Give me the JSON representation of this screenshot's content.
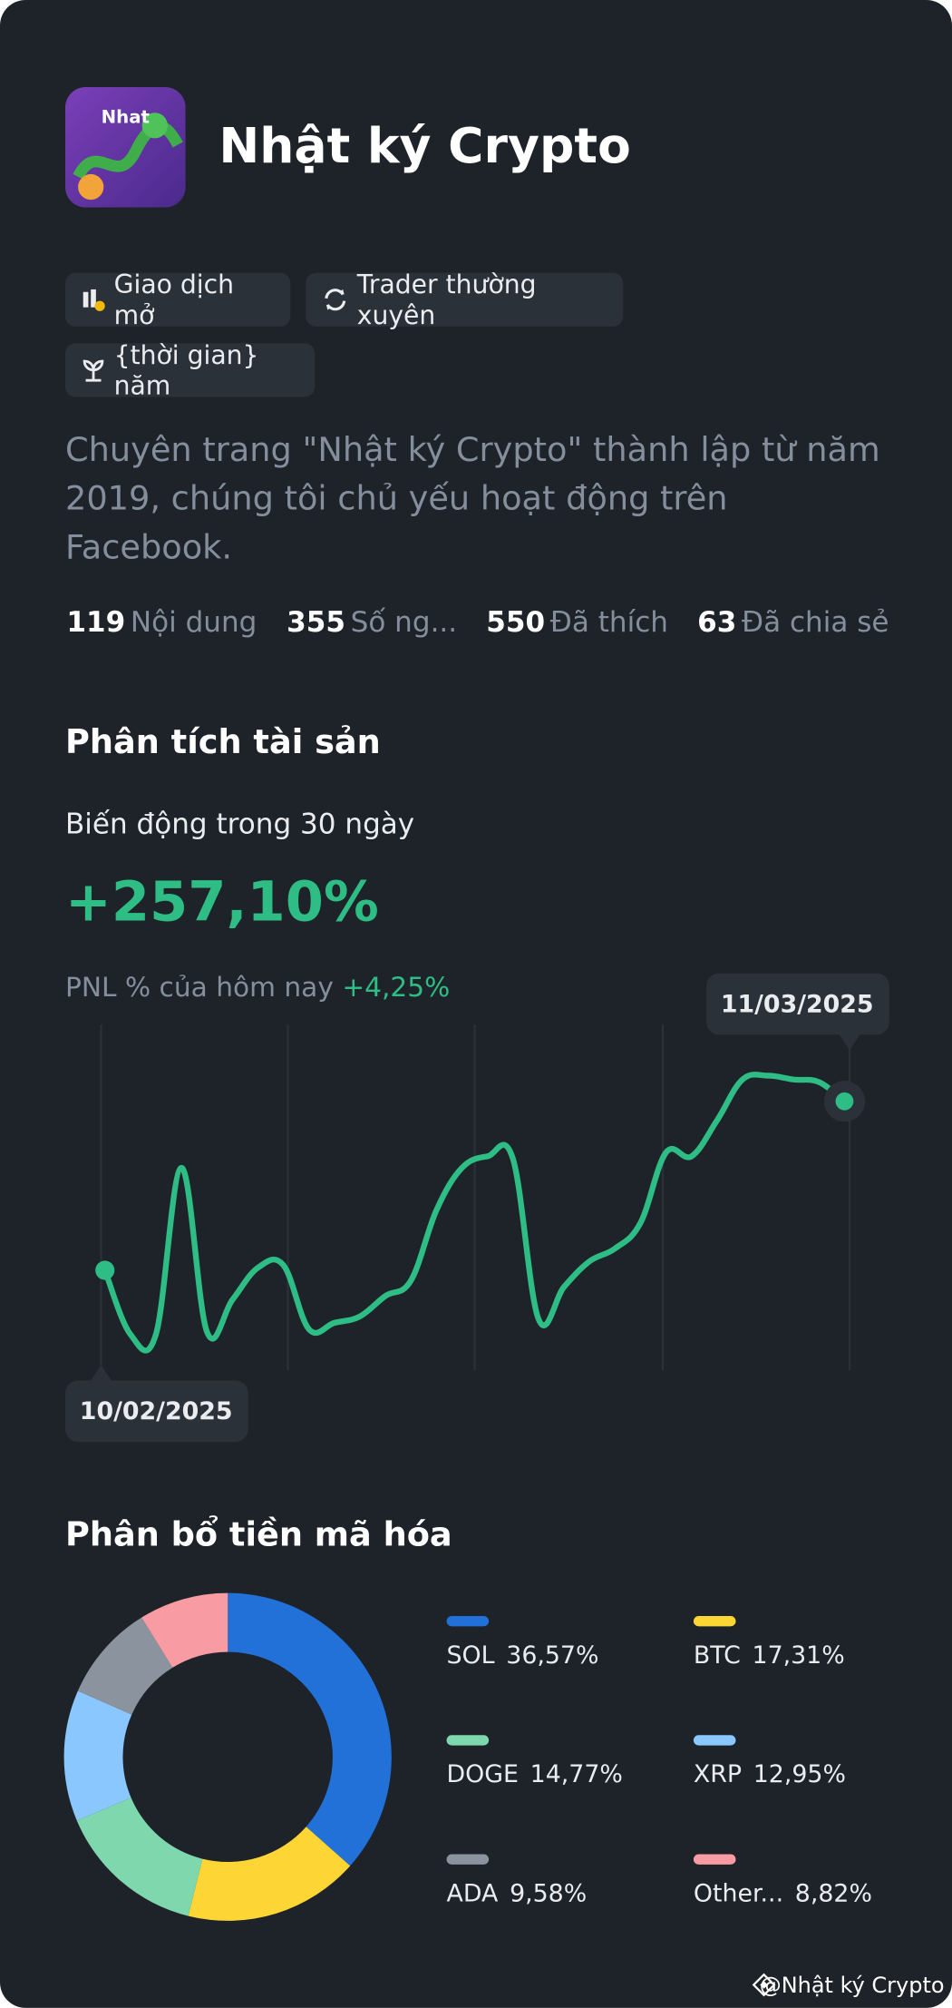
{
  "header": {
    "title": "Nhật ký Crypto"
  },
  "tags": [
    "Giao dịch mở",
    "Trader thường xuyên",
    "{thời gian} năm"
  ],
  "description": "Chuyên trang \"Nhật ký Crypto\" thành lập từ năm 2019, chúng tôi chủ yếu hoạt động trên Facebook.",
  "stats": [
    {
      "value": 119,
      "label": "Nội dung"
    },
    {
      "value": 355,
      "label": "Số ng..."
    },
    {
      "value": 550,
      "label": "Đã thích"
    },
    {
      "value": 63,
      "label": "Đã chia sẻ"
    }
  ],
  "analysis": {
    "title": "Phân tích tài sản",
    "change_label": "Biến động trong 30 ngày",
    "change_value": "+257,10%",
    "pnl_label": "PNL % của hôm nay",
    "pnl_value": "+4,25%"
  },
  "chart_data": [
    {
      "type": "line",
      "color": "#2ebd85",
      "ylim": [
        0,
        110
      ],
      "x": [
        "10/02/2025",
        null,
        null,
        null,
        null,
        null,
        null,
        null,
        null,
        null,
        null,
        null,
        null,
        null,
        null,
        null,
        null,
        null,
        null,
        null,
        null,
        null,
        null,
        null,
        null,
        null,
        null,
        null,
        null,
        "11/03/2025"
      ],
      "values": [
        29,
        4,
        4,
        69,
        5,
        17.5,
        30,
        31,
        6,
        8.5,
        11,
        19,
        25,
        52.5,
        69,
        73.5,
        72.5,
        10,
        22.5,
        32.5,
        37.5,
        47.5,
        75,
        73.5,
        87.5,
        103.5,
        105,
        103.5,
        102.5,
        95
      ]
    },
    {
      "type": "donut",
      "title": "Phân bổ tiền mã hóa",
      "categories": [
        "SOL",
        "BTC",
        "DOGE",
        "XRP",
        "ADA",
        "Other..."
      ],
      "values": [
        36.57,
        17.31,
        14.77,
        12.95,
        9.58,
        8.82
      ],
      "value_labels": [
        "36,57%",
        "17,31%",
        "14,77%",
        "12,95%",
        "9,58%",
        "8,82%"
      ],
      "colors": [
        "#2271d8",
        "#fdd535",
        "#7fd7ae",
        "#8bc7ff",
        "#8a939e",
        "#f99ba2"
      ]
    }
  ],
  "watermark": "@Nhật ký Crypto"
}
